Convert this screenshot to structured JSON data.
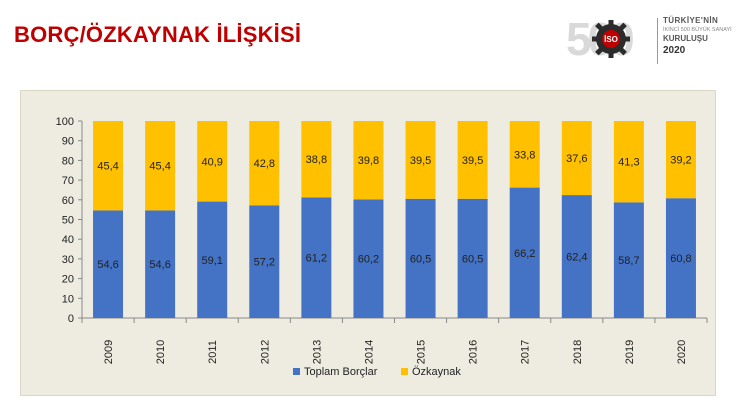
{
  "header": {
    "title": "BORÇ/ÖZKAYNAK İLİŞKİSİ"
  },
  "logo": {
    "number": "500",
    "line1": "TÜRKİYE'NİN",
    "line2": "İKİNCİ 500 BÜYÜK SANAYİ",
    "line3": "KURULUŞU",
    "line4": "2020",
    "gear_label": "İSO"
  },
  "chart_data": {
    "type": "bar",
    "stacked": true,
    "categories": [
      "2009",
      "2010",
      "2011",
      "2012",
      "2013",
      "2014",
      "2015",
      "2016",
      "2017",
      "2018",
      "2019",
      "2020"
    ],
    "series": [
      {
        "name": "Toplam Borçlar",
        "color": "#4472c4",
        "values": [
          54.6,
          54.6,
          59.1,
          57.2,
          61.2,
          60.2,
          60.5,
          60.5,
          66.2,
          62.4,
          58.7,
          60.8
        ],
        "labels": [
          "54,6",
          "54,6",
          "59,1",
          "57,2",
          "61,2",
          "60,2",
          "60,5",
          "60,5",
          "66,2",
          "62,4",
          "58,7",
          "60,8"
        ]
      },
      {
        "name": "Özkaynak",
        "color": "#ffc000",
        "values": [
          45.4,
          45.4,
          40.9,
          42.8,
          38.8,
          39.8,
          39.5,
          39.5,
          33.8,
          37.6,
          41.3,
          39.2
        ],
        "labels": [
          "45,4",
          "45,4",
          "40,9",
          "42,8",
          "38,8",
          "39,8",
          "39,5",
          "39,5",
          "33,8",
          "37,6",
          "41,3",
          "39,2"
        ]
      }
    ],
    "ylim": [
      0,
      100
    ],
    "yticks": [
      "0",
      "10",
      "20",
      "30",
      "40",
      "50",
      "60",
      "70",
      "80",
      "90",
      "100"
    ],
    "grid": false,
    "legend": "bottom"
  }
}
